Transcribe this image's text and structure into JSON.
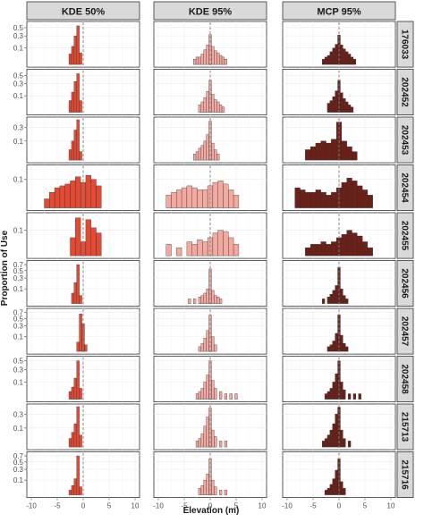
{
  "chart_data": {
    "type": "bar",
    "facet_layout": "grid",
    "ylabel": "Proportion of Use",
    "xlabel": "Elevation (m)",
    "xlim": [
      -10,
      10
    ],
    "x_ticks": [
      -10,
      -5,
      0,
      5,
      10
    ],
    "x_tick_labels": [
      "-10",
      "-5",
      "0",
      "5",
      "10"
    ],
    "reference_line_x": 0,
    "grid": true,
    "y_scale": "sqrt",
    "colors": {
      "KDE 50%": "#e34a33",
      "KDE 95%": "#f4a9a0",
      "MCP 95%": "#6b2018",
      "strip_background": "#d9d9d9",
      "panel_border": "#333333",
      "grid": "#ebebeb",
      "reference_line": "#7f7f7f"
    },
    "columns": [
      "KDE 50%",
      "KDE 95%",
      "MCP 95%"
    ],
    "rows": [
      {
        "id": "176033",
        "y_ticks": [
          0.1,
          0.3,
          0.5
        ],
        "y_tick_labels": [
          "0.1",
          "0.3",
          "0.5"
        ],
        "ylim": [
          0,
          0.6
        ],
        "series": {
          "KDE 50%": {
            "x": [
              -2.5,
              -2,
              -1.5,
              -1,
              -0.5
            ],
            "values": [
              0.04,
              0.12,
              0.3,
              0.55,
              0.05
            ]
          },
          "KDE 95%": {
            "x": [
              -3,
              -2.5,
              -2,
              -1.5,
              -1,
              -0.5,
              0,
              0.5,
              1,
              1.5,
              2,
              2.5,
              3
            ],
            "values": [
              0.01,
              0.02,
              0.02,
              0.04,
              0.08,
              0.14,
              0.33,
              0.12,
              0.07,
              0.05,
              0.03,
              0.02,
              0.01
            ]
          },
          "MCP 95%": {
            "x": [
              -3,
              -2.5,
              -2,
              -1.5,
              -1,
              -0.5,
              0,
              0.5,
              1,
              1.5,
              2,
              2.5,
              3
            ],
            "values": [
              0.01,
              0.02,
              0.03,
              0.06,
              0.1,
              0.15,
              0.32,
              0.14,
              0.09,
              0.06,
              0.04,
              0.02,
              0.01
            ]
          }
        }
      },
      {
        "id": "202452",
        "y_ticks": [
          0.1,
          0.3,
          0.5
        ],
        "y_tick_labels": [
          "0.1",
          "0.3",
          "0.5"
        ],
        "ylim": [
          0,
          0.6
        ],
        "series": {
          "KDE 50%": {
            "x": [
              -2.5,
              -2,
              -1.5,
              -1,
              -0.5
            ],
            "values": [
              0.05,
              0.15,
              0.35,
              0.55,
              0.05
            ]
          },
          "KDE 95%": {
            "x": [
              -2,
              -1.5,
              -1,
              -0.5,
              0,
              0.5,
              1,
              1.5,
              2,
              2.5
            ],
            "values": [
              0.02,
              0.04,
              0.08,
              0.16,
              0.38,
              0.12,
              0.06,
              0.04,
              0.02,
              0.01
            ]
          },
          "MCP 95%": {
            "x": [
              -2,
              -1.5,
              -1,
              -0.5,
              0,
              0.5,
              1,
              1.5,
              2,
              2.5
            ],
            "values": [
              0.03,
              0.05,
              0.09,
              0.17,
              0.38,
              0.14,
              0.07,
              0.04,
              0.02,
              0.01
            ]
          }
        }
      },
      {
        "id": "202453",
        "y_ticks": [
          0.1,
          0.3
        ],
        "y_tick_labels": [
          "0.1",
          "0.3"
        ],
        "ylim": [
          0,
          0.45
        ],
        "series": {
          "KDE 50%": {
            "x": [
              -2.5,
              -2,
              -1.5,
              -1,
              -0.5
            ],
            "values": [
              0.03,
              0.1,
              0.25,
              0.45,
              0.02
            ]
          },
          "KDE 95%": {
            "x": [
              -3,
              -2.5,
              -2,
              -1.5,
              -1,
              -0.5,
              0,
              0.5,
              1,
              1.5
            ],
            "values": [
              0.01,
              0.02,
              0.04,
              0.06,
              0.1,
              0.18,
              0.42,
              0.08,
              0.03,
              0.01
            ]
          },
          "MCP 95%": {
            "x": [
              -6,
              -5,
              -4,
              -3,
              -2,
              -1,
              0,
              1,
              2,
              3
            ],
            "values": [
              0.03,
              0.05,
              0.08,
              0.1,
              0.08,
              0.12,
              0.4,
              0.1,
              0.05,
              0.02
            ]
          }
        }
      },
      {
        "id": "202454",
        "y_ticks": [
          0.1
        ],
        "y_tick_labels": [
          "0.1"
        ],
        "ylim": [
          0,
          0.2
        ],
        "series": {
          "KDE 50%": {
            "x": [
              -7,
              -6,
              -5,
              -4,
              -3,
              -2,
              -1,
              0,
              1,
              2,
              3
            ],
            "values": [
              0.01,
              0.03,
              0.05,
              0.06,
              0.07,
              0.09,
              0.12,
              0.08,
              0.13,
              0.1,
              0.06
            ]
          },
          "KDE 95%": {
            "x": [
              -8,
              -7,
              -6,
              -5,
              -4,
              -3,
              -2,
              -1,
              0,
              1,
              2,
              3,
              4,
              5
            ],
            "values": [
              0.02,
              0.03,
              0.04,
              0.05,
              0.06,
              0.05,
              0.04,
              0.04,
              0.06,
              0.08,
              0.09,
              0.07,
              0.04,
              0.02
            ]
          },
          "MCP 95%": {
            "x": [
              -8,
              -7,
              -6,
              -5,
              -4,
              -3,
              -2,
              -1,
              0,
              1,
              2,
              3,
              4,
              5,
              6
            ],
            "values": [
              0.05,
              0.04,
              0.03,
              0.03,
              0.04,
              0.03,
              0.02,
              0.03,
              0.05,
              0.08,
              0.11,
              0.09,
              0.06,
              0.04,
              0.02
            ]
          }
        }
      },
      {
        "id": "202455",
        "y_ticks": [
          0.1
        ],
        "y_tick_labels": [
          "0.1"
        ],
        "ylim": [
          0,
          0.25
        ],
        "series": {
          "KDE 50%": {
            "x": [
              -2,
              -1,
              0,
              1,
              2,
              3
            ],
            "values": [
              0.05,
              0.22,
              0.03,
              0.2,
              0.12,
              0.08
            ]
          },
          "KDE 95%": {
            "x": [
              -8,
              -6,
              -4,
              -3,
              -2,
              -1,
              0,
              1,
              2,
              3,
              4,
              5
            ],
            "values": [
              0.02,
              0.01,
              0.03,
              0.02,
              0.04,
              0.03,
              0.05,
              0.08,
              0.1,
              0.09,
              0.05,
              0.02
            ]
          },
          "MCP 95%": {
            "x": [
              -6,
              -5,
              -4,
              -3,
              -2,
              -1,
              0,
              1,
              2,
              3,
              4,
              5,
              6
            ],
            "values": [
              0.01,
              0.02,
              0.02,
              0.03,
              0.02,
              0.03,
              0.05,
              0.07,
              0.1,
              0.08,
              0.06,
              0.03,
              0.01
            ]
          }
        }
      },
      {
        "id": "202456",
        "y_ticks": [
          0.1,
          0.3,
          0.5,
          0.7
        ],
        "y_tick_labels": [
          "0.1",
          "0.3",
          "0.5",
          "0.7"
        ],
        "ylim": [
          0,
          0.75
        ],
        "series": {
          "KDE 50%": {
            "x": [
              -2,
              -1.5,
              -1,
              -0.5
            ],
            "values": [
              0.05,
              0.2,
              0.7,
              0.03
            ]
          },
          "KDE 95%": {
            "x": [
              -4,
              -3,
              -2,
              -1.5,
              -1,
              -0.5,
              0,
              0.5,
              1,
              1.5,
              2
            ],
            "values": [
              0.01,
              0.01,
              0.02,
              0.03,
              0.05,
              0.1,
              0.55,
              0.08,
              0.03,
              0.02,
              0.01
            ]
          },
          "MCP 95%": {
            "x": [
              -3,
              -2,
              -1.5,
              -1,
              -0.5,
              0,
              0.5,
              1,
              1.5
            ],
            "values": [
              0.01,
              0.02,
              0.04,
              0.08,
              0.15,
              0.6,
              0.1,
              0.03,
              0.01
            ]
          }
        }
      },
      {
        "id": "202457",
        "y_ticks": [
          0.1,
          0.3,
          0.5,
          0.7
        ],
        "y_tick_labels": [
          "0.1",
          "0.3",
          "0.5",
          "0.7"
        ],
        "ylim": [
          0,
          0.75
        ],
        "series": {
          "KDE 50%": {
            "x": [
              -1,
              -0.5,
              0,
              0.5
            ],
            "values": [
              0.04,
              0.65,
              0.35,
              0.02
            ]
          },
          "KDE 95%": {
            "x": [
              -2,
              -1.5,
              -1,
              -0.5,
              0,
              0.5,
              1
            ],
            "values": [
              0.01,
              0.03,
              0.08,
              0.2,
              0.6,
              0.1,
              0.02
            ]
          },
          "MCP 95%": {
            "x": [
              -2,
              -1.5,
              -1,
              -0.5,
              0,
              0.5,
              1,
              1.5
            ],
            "values": [
              0.01,
              0.02,
              0.05,
              0.15,
              0.62,
              0.12,
              0.03,
              0.01
            ]
          }
        }
      },
      {
        "id": "202458",
        "y_ticks": [
          0.1,
          0.3,
          0.5
        ],
        "y_tick_labels": [
          "0.1",
          "0.3",
          "0.5"
        ],
        "ylim": [
          0,
          0.55
        ],
        "series": {
          "KDE 50%": {
            "x": [
              -2.5,
              -2,
              -1.5,
              -1,
              -0.5
            ],
            "values": [
              0.02,
              0.05,
              0.15,
              0.5,
              0.04
            ]
          },
          "KDE 95%": {
            "x": [
              -2.5,
              -2,
              -1.5,
              -1,
              -0.5,
              0,
              0.5,
              1,
              2,
              3,
              4,
              5
            ],
            "values": [
              0.01,
              0.02,
              0.04,
              0.1,
              0.2,
              0.5,
              0.12,
              0.04,
              0.02,
              0.01,
              0.01,
              0.01
            ]
          },
          "MCP 95%": {
            "x": [
              -2.5,
              -2,
              -1.5,
              -1,
              -0.5,
              0,
              0.5,
              1,
              2,
              3,
              4
            ],
            "values": [
              0.01,
              0.02,
              0.04,
              0.1,
              0.22,
              0.5,
              0.1,
              0.03,
              0.01,
              0.01,
              0.01
            ]
          }
        }
      },
      {
        "id": "215713",
        "y_ticks": [
          0.1,
          0.3
        ],
        "y_tick_labels": [
          "0.1",
          "0.3"
        ],
        "ylim": [
          0,
          0.45
        ],
        "series": {
          "KDE 50%": {
            "x": [
              -2.5,
              -2,
              -1.5,
              -1,
              -0.5
            ],
            "values": [
              0.02,
              0.06,
              0.15,
              0.45,
              0.04
            ]
          },
          "KDE 95%": {
            "x": [
              -2.5,
              -2,
              -1.5,
              -1,
              -0.5,
              0,
              0.5,
              1,
              2,
              3
            ],
            "values": [
              0.01,
              0.02,
              0.05,
              0.12,
              0.25,
              0.42,
              0.08,
              0.03,
              0.01,
              0.01
            ]
          },
          "MCP 95%": {
            "x": [
              -3,
              -2.5,
              -2,
              -1.5,
              -1,
              -0.5,
              0,
              0.5,
              1,
              2
            ],
            "values": [
              0.01,
              0.02,
              0.04,
              0.08,
              0.15,
              0.3,
              0.44,
              0.08,
              0.02,
              0.01
            ]
          }
        }
      },
      {
        "id": "215716",
        "y_ticks": [
          0.1,
          0.3,
          0.5,
          0.7
        ],
        "y_tick_labels": [
          "0.1",
          "0.3",
          "0.5",
          "0.7"
        ],
        "ylim": [
          0,
          0.75
        ],
        "series": {
          "KDE 50%": {
            "x": [
              -2.5,
              -2,
              -1.5,
              -1,
              -0.5
            ],
            "values": [
              0.01,
              0.04,
              0.12,
              0.7,
              0.03
            ]
          },
          "KDE 95%": {
            "x": [
              -2,
              -1.5,
              -1,
              -0.5,
              0,
              0.5,
              1,
              2,
              3
            ],
            "values": [
              0.02,
              0.04,
              0.1,
              0.2,
              0.6,
              0.1,
              0.03,
              0.01,
              0.01
            ]
          },
          "MCP 95%": {
            "x": [
              -2.5,
              -2,
              -1.5,
              -1,
              -0.5,
              0,
              0.5,
              1
            ],
            "values": [
              0.01,
              0.02,
              0.05,
              0.12,
              0.28,
              0.6,
              0.08,
              0.02
            ]
          }
        }
      }
    ]
  }
}
